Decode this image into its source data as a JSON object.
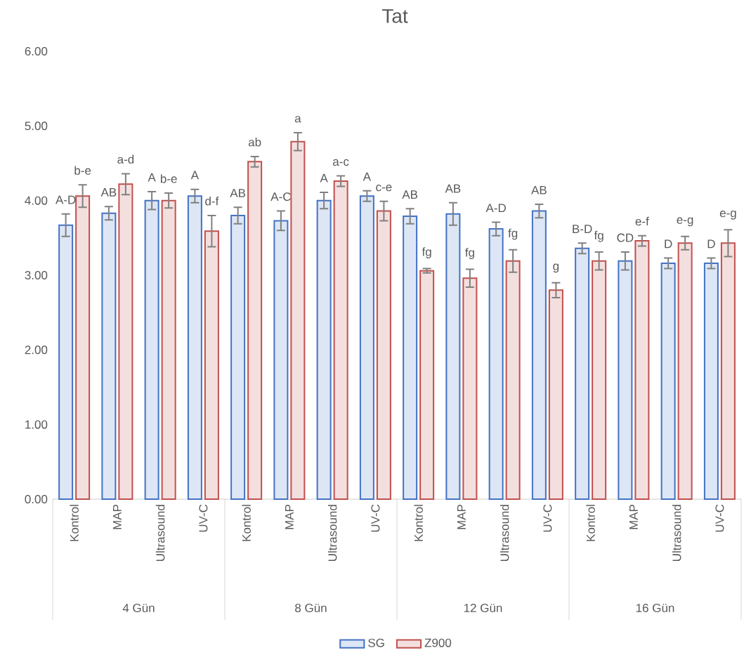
{
  "chart_data": {
    "type": "bar",
    "title": "Tat",
    "categories": [
      "Kontrol",
      "MAP",
      "Ultrasound",
      "UV-C",
      "Kontrol",
      "MAP",
      "Ultrasound",
      "UV-C",
      "Kontrol",
      "MAP",
      "Ultrasound",
      "UV-C",
      "Kontrol",
      "MAP",
      "Ultrasound",
      "UV-C"
    ],
    "series": [
      {
        "name": "SG",
        "color": "#4472c4",
        "values": [
          3.67,
          3.83,
          4.0,
          4.06,
          3.8,
          3.73,
          4.0,
          4.06,
          3.79,
          3.82,
          3.62,
          3.86,
          3.36,
          3.19,
          3.16,
          3.16
        ],
        "errors": [
          0.15,
          0.09,
          0.12,
          0.09,
          0.11,
          0.13,
          0.11,
          0.07,
          0.1,
          0.15,
          0.09,
          0.09,
          0.07,
          0.12,
          0.07,
          0.07
        ],
        "value_labels": [
          "A-D",
          "AB",
          "A",
          "A",
          "AB",
          "A-C",
          "A",
          "A",
          "AB",
          "AB",
          "A-D",
          "AB",
          "B-D",
          "CD",
          "D",
          "D"
        ]
      },
      {
        "name": "Z900",
        "color": "#c0504d",
        "values": [
          4.06,
          4.22,
          4.0,
          3.59,
          4.52,
          4.79,
          4.26,
          3.86,
          3.06,
          2.96,
          3.19,
          2.8,
          3.19,
          3.46,
          3.43,
          3.43
        ],
        "errors": [
          0.15,
          0.14,
          0.1,
          0.21,
          0.07,
          0.12,
          0.07,
          0.13,
          0.03,
          0.12,
          0.15,
          0.1,
          0.12,
          0.07,
          0.09,
          0.18
        ],
        "value_labels": [
          "b-e",
          "a-d",
          "b-e",
          "d-f",
          "ab",
          "a",
          "a-c",
          "c-e",
          "fg",
          "fg",
          "fg",
          "g",
          "fg",
          "e-f",
          "e-g",
          "e-g"
        ]
      }
    ],
    "annotations": [
      "4  Gün",
      "8  Gün",
      "12  Gün",
      "16  Gün"
    ],
    "ylim": [
      0,
      6
    ],
    "yticks": [
      {
        "value": 0,
        "label": "0.00"
      },
      {
        "value": 1,
        "label": "1.00"
      },
      {
        "value": 2,
        "label": "2.00"
      },
      {
        "value": 3,
        "label": "3.00"
      },
      {
        "value": 4,
        "label": "4.00"
      },
      {
        "value": 5,
        "label": "5.00"
      },
      {
        "value": 6,
        "label": "6.00"
      }
    ],
    "legend": "bottom"
  }
}
